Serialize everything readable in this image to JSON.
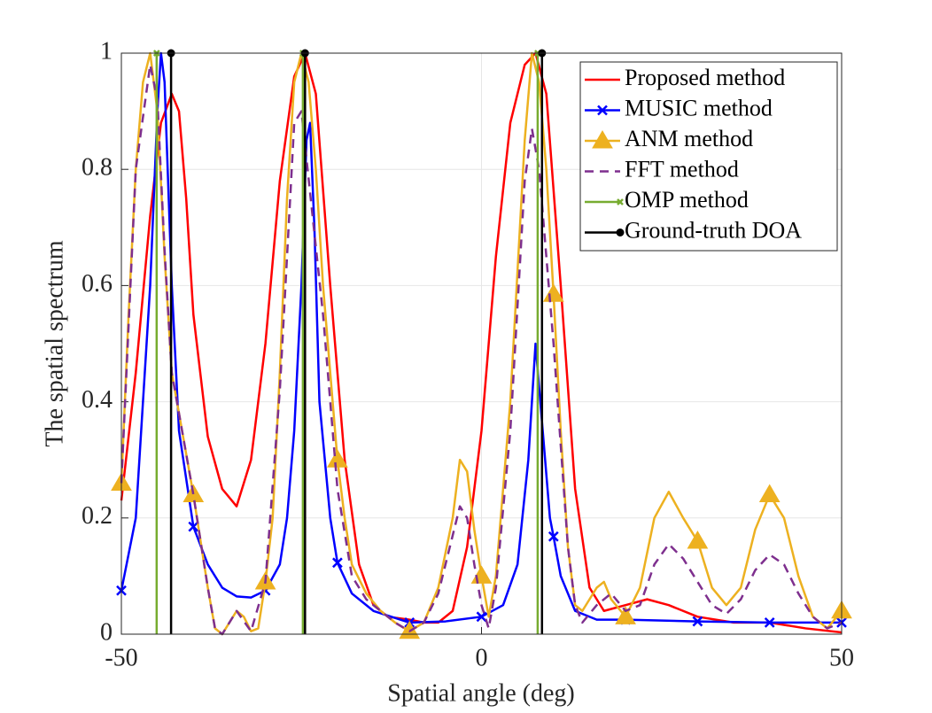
{
  "chart_data": {
    "type": "line",
    "xlabel": "Spatial angle (deg)",
    "ylabel": "The spatial spectrum",
    "xlim": [
      -50,
      50
    ],
    "xticks": [
      -50,
      0,
      50
    ],
    "ylim": [
      0,
      1
    ],
    "yticks": [
      0,
      0.2,
      0.4,
      0.6,
      0.8,
      1
    ],
    "grid": true,
    "legend": "upper right",
    "series": [
      {
        "name": "Proposed method",
        "color": "#ff0000",
        "x": [
          -50,
          -48,
          -46,
          -44.5,
          -43,
          -42,
          -41,
          -40,
          -38,
          -36,
          -34,
          -32,
          -30,
          -28,
          -26,
          -24.5,
          -23,
          -21,
          -19,
          -17,
          -15,
          -13,
          -10,
          -8,
          -6,
          -4,
          -2,
          0,
          2,
          4,
          6,
          7.5,
          9,
          11,
          13,
          15,
          17,
          20,
          23,
          26,
          30,
          35,
          40,
          45,
          50
        ],
        "values": [
          0.23,
          0.45,
          0.72,
          0.88,
          0.93,
          0.9,
          0.75,
          0.55,
          0.34,
          0.25,
          0.22,
          0.3,
          0.5,
          0.78,
          0.96,
          1.0,
          0.93,
          0.6,
          0.3,
          0.12,
          0.05,
          0.03,
          0.025,
          0.02,
          0.02,
          0.04,
          0.15,
          0.35,
          0.65,
          0.88,
          0.98,
          1.0,
          0.93,
          0.6,
          0.25,
          0.08,
          0.04,
          0.05,
          0.06,
          0.05,
          0.03,
          0.02,
          0.02,
          0.01,
          0.003
        ]
      },
      {
        "name": "MUSIC method",
        "color": "#0000ff",
        "marker": "x",
        "marker_interval": 10,
        "x": [
          -50,
          -48,
          -46,
          -45,
          -44.5,
          -44,
          -43,
          -42,
          -40,
          -38,
          -36,
          -34,
          -32,
          -30,
          -28,
          -27,
          -26,
          -25,
          -24.3,
          -23.8,
          -23.2,
          -22.5,
          -21,
          -20,
          -18,
          -15,
          -10,
          -5,
          0,
          3,
          5,
          6.5,
          7.5,
          8.5,
          9.5,
          10,
          11,
          13,
          16,
          20,
          30,
          40,
          50
        ],
        "values": [
          0.075,
          0.2,
          0.6,
          0.9,
          1.0,
          0.95,
          0.6,
          0.35,
          0.185,
          0.12,
          0.08,
          0.065,
          0.063,
          0.075,
          0.12,
          0.2,
          0.35,
          0.6,
          0.85,
          0.88,
          0.7,
          0.4,
          0.2,
          0.123,
          0.07,
          0.04,
          0.02,
          0.022,
          0.03,
          0.05,
          0.12,
          0.3,
          0.5,
          0.35,
          0.2,
          0.168,
          0.1,
          0.04,
          0.025,
          0.025,
          0.022,
          0.02,
          0.02
        ]
      },
      {
        "name": "ANM method",
        "color": "#edb120",
        "marker": "triangle",
        "marker_interval": 10,
        "x": [
          -50,
          -49,
          -48,
          -47,
          -46,
          -45,
          -44,
          -43,
          -40,
          -38,
          -37,
          -36,
          -35,
          -34,
          -33,
          -32,
          -31,
          -30,
          -29,
          -28,
          -27,
          -26,
          -25,
          -24,
          -23,
          -22,
          -20,
          -19,
          -18,
          -16,
          -14,
          -12,
          -10,
          -8,
          -6,
          -4,
          -3,
          -2,
          -1,
          0,
          1,
          2,
          4,
          6,
          7,
          8,
          9,
          10,
          11,
          12,
          13,
          14,
          16,
          17,
          18,
          20,
          22,
          24,
          26,
          28,
          30,
          32,
          34,
          36,
          38,
          40,
          42,
          44,
          46,
          48,
          50
        ],
        "values": [
          0.26,
          0.55,
          0.8,
          0.95,
          1.0,
          0.9,
          0.65,
          0.45,
          0.24,
          0.08,
          0.01,
          0.0,
          0.02,
          0.04,
          0.03,
          0.005,
          0.01,
          0.09,
          0.2,
          0.45,
          0.75,
          0.95,
          1.0,
          0.95,
          0.8,
          0.6,
          0.3,
          0.2,
          0.12,
          0.07,
          0.04,
          0.02,
          0.005,
          0.02,
          0.08,
          0.2,
          0.3,
          0.28,
          0.18,
          0.1,
          0.03,
          0.1,
          0.4,
          0.85,
          1.0,
          0.95,
          0.8,
          0.585,
          0.35,
          0.15,
          0.05,
          0.04,
          0.08,
          0.09,
          0.06,
          0.03,
          0.08,
          0.2,
          0.245,
          0.2,
          0.16,
          0.08,
          0.05,
          0.08,
          0.18,
          0.24,
          0.2,
          0.1,
          0.03,
          0.01,
          0.04
        ]
      },
      {
        "name": "FFT method",
        "color": "#7e2f8e",
        "dash": true,
        "x": [
          -50,
          -48,
          -46,
          -45,
          -44,
          -43,
          -40,
          -38,
          -37,
          -36,
          -34,
          -32,
          -30,
          -28,
          -26,
          -25,
          -22,
          -20,
          -18,
          -16,
          -14,
          -12,
          -10,
          -8,
          -6,
          -4,
          -3,
          -2,
          -1,
          0,
          1,
          2,
          4,
          6,
          7,
          8,
          10,
          12,
          13,
          14,
          16,
          18,
          20,
          22,
          24,
          26,
          28,
          30,
          32,
          34,
          36,
          38,
          40,
          42,
          44,
          46,
          48,
          50
        ],
        "values": [
          0.26,
          0.8,
          0.98,
          0.92,
          0.66,
          0.45,
          0.24,
          0.08,
          0.01,
          0.0,
          0.04,
          0.005,
          0.09,
          0.42,
          0.88,
          0.9,
          0.55,
          0.25,
          0.1,
          0.06,
          0.04,
          0.02,
          0.005,
          0.02,
          0.07,
          0.17,
          0.22,
          0.2,
          0.12,
          0.05,
          0.01,
          0.08,
          0.35,
          0.78,
          0.87,
          0.8,
          0.5,
          0.15,
          0.05,
          0.02,
          0.05,
          0.07,
          0.04,
          0.05,
          0.12,
          0.155,
          0.13,
          0.09,
          0.05,
          0.035,
          0.06,
          0.11,
          0.137,
          0.12,
          0.07,
          0.03,
          0.01,
          0.02
        ]
      },
      {
        "name": "OMP method",
        "color": "#77ac30",
        "style": "stem",
        "marker": "x-small",
        "x": [
          -45.1,
          -24.8,
          7.8
        ],
        "values": [
          1,
          1,
          1
        ]
      },
      {
        "name": "Ground-truth DOA",
        "color": "#000000",
        "style": "stem",
        "marker": "dot",
        "x": [
          -43.1,
          -24.5,
          8.4
        ],
        "values": [
          1,
          1,
          1
        ]
      }
    ]
  }
}
